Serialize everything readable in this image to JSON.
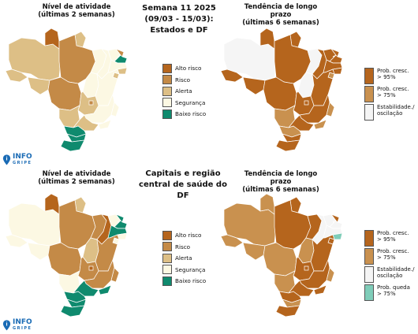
{
  "colors": {
    "alto_risco": "#b5651d",
    "risco": "#c48a47",
    "alerta": "#ddbf86",
    "seguranca": "#fcf8e3",
    "baixo_risco": "#0f8a6e",
    "prob_cresc_95": "#b5651d",
    "prob_cresc_75": "#c9914f",
    "estabilidade": "#f5f5f5",
    "prob_queda_75": "#7fcdb9"
  },
  "top": {
    "left_title": "Nível de atividade\n(últimas 2 semanas)",
    "center_title": "Semana 11 2025\n(09/03 - 15/03):\nEstados e DF",
    "right_title": "Tendência de longo prazo\n(últimas 6 semanas)"
  },
  "bottom": {
    "left_title": "Nível de atividade\n(últimas 2 semanas)",
    "center_title": "Capitais e região\ncentral de saúde do DF",
    "right_title": "Tendência de longo prazo\n(últimas 6 semanas)"
  },
  "legend_activity": [
    {
      "label": "Alto risco",
      "color": "#b5651d"
    },
    {
      "label": "Risco",
      "color": "#c48a47"
    },
    {
      "label": "Alerta",
      "color": "#ddbf86"
    },
    {
      "label": "Segurança",
      "color": "#fcf8e3"
    },
    {
      "label": "Baixo risco",
      "color": "#0f8a6e"
    }
  ],
  "legend_trend_top": [
    {
      "label": "Prob. cresc.\n> 95%",
      "color": "#b5651d"
    },
    {
      "label": "Prob. cresc.\n> 75%",
      "color": "#c9914f"
    },
    {
      "label": "Estabilidade./\noscilação",
      "color": "#f5f5f5"
    }
  ],
  "legend_trend_bottom": [
    {
      "label": "Prob. cresc.\n> 95%",
      "color": "#b5651d"
    },
    {
      "label": "Prob. cresc.\n> 75%",
      "color": "#c9914f"
    },
    {
      "label": "Estabilidade./\noscilação",
      "color": "#f5f5f5"
    },
    {
      "label": "Prob. queda\n> 75%",
      "color": "#7fcdb9"
    }
  ],
  "logo": {
    "main": "INFO",
    "sub": "GRIPE"
  },
  "maps": {
    "top_activity": {
      "AC": "#ddbf86",
      "AM": "#ddbf86",
      "RR": "#b5651d",
      "AP": "#ddbf86",
      "PA": "#c48a47",
      "RO": "#ddbf86",
      "MT": "#c48a47",
      "TO": "#fcf8e3",
      "MA": "#fcf8e3",
      "PI": "#fcf8e3",
      "CE": "#fcf8e3",
      "RN": "#c48a47",
      "PB": "#0f8a6e",
      "PE": "#fcf8e3",
      "AL": "#ddbf86",
      "SE": "#ddbf86",
      "BA": "#fcf8e3",
      "GO": "#ddbf86",
      "DF": "#c48a47",
      "MG": "#fcf8e3",
      "ES": "#fcf8e3",
      "MS": "#ddbf86",
      "SP": "#ddbf86",
      "RJ": "#fcf8e3",
      "PR": "#0f8a6e",
      "SC": "#0f8a6e",
      "RS": "#0f8a6e"
    },
    "top_trend": {
      "AC": "#b5651d",
      "AM": "#f5f5f5",
      "RR": "#b5651d",
      "AP": "#b5651d",
      "PA": "#b5651d",
      "RO": "#b5651d",
      "MT": "#b5651d",
      "TO": "#f5f5f5",
      "MA": "#f5f5f5",
      "PI": "#b5651d",
      "CE": "#b5651d",
      "RN": "#b5651d",
      "PB": "#b5651d",
      "PE": "#b5651d",
      "AL": "#b5651d",
      "SE": "#c9914f",
      "BA": "#b5651d",
      "GO": "#b5651d",
      "DF": "#b5651d",
      "MG": "#b5651d",
      "ES": "#c9914f",
      "MS": "#c9914f",
      "SP": "#b5651d",
      "RJ": "#c9914f",
      "PR": "#c9914f",
      "SC": "#b5651d",
      "RS": "#b5651d"
    },
    "bottom_activity": {
      "AC": "#fcf8e3",
      "AM": "#fcf8e3",
      "RR": "#b5651d",
      "AP": "#ddbf86",
      "PA": "#c48a47",
      "RO": "#fcf8e3",
      "MT": "#c48a47",
      "TO": "#ddbf86",
      "MA": "#c48a47",
      "PI": "#b5651d",
      "CE": "#fcf8e3",
      "RN": "#0f8a6e",
      "PB": "#0f8a6e",
      "PE": "#0f8a6e",
      "AL": "#fcf8e3",
      "SE": "#fcf8e3",
      "BA": "#c48a47",
      "GO": "#c48a47",
      "DF": "#b5651d",
      "MG": "#c48a47",
      "ES": "#c48a47",
      "MS": "#fcf8e3",
      "SP": "#0f8a6e",
      "RJ": "#0f8a6e",
      "PR": "#0f8a6e",
      "SC": "#0f8a6e",
      "RS": "#0f8a6e"
    },
    "bottom_trend": {
      "AC": "#c9914f",
      "AM": "#c9914f",
      "RR": "#c9914f",
      "AP": "#b5651d",
      "PA": "#b5651d",
      "RO": "#c9914f",
      "MT": "#c9914f",
      "TO": "#c9914f",
      "MA": "#b5651d",
      "PI": "#f5f5f5",
      "CE": "#f5f5f5",
      "RN": "#b5651d",
      "PB": "#f5f5f5",
      "PE": "#f5f5f5",
      "AL": "#7fcdb9",
      "SE": "#b5651d",
      "BA": "#b5651d",
      "GO": "#b5651d",
      "DF": "#b5651d",
      "MG": "#b5651d",
      "ES": "#c9914f",
      "MS": "#c9914f",
      "SP": "#b5651d",
      "RJ": "#b5651d",
      "PR": "#b5651d",
      "SC": "#c9914f",
      "RS": "#b5651d"
    }
  }
}
